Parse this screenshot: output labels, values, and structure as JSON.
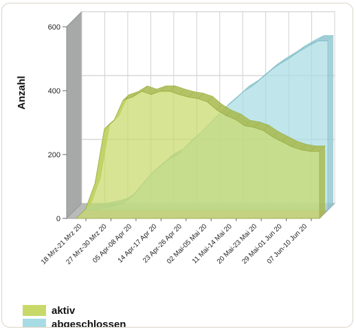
{
  "chart_data": {
    "type": "area",
    "ylabel": "Anzahl",
    "ylim": [
      0,
      600
    ],
    "y_ticks": [
      0,
      200,
      400,
      600
    ],
    "tick_labels": [
      "18 Mrz-21 Mrz 20",
      "27 Mrz-30 Mrz 20",
      "05 Apr-08 Apr 20",
      "14 Apr-17 Apr 20",
      "23 Apr-26 Apr 20",
      "02 Mai-05 Mai 20",
      "11 Mai-14 Mai 20",
      "20 Mai-23 Mai 20",
      "29 Mai-01 Jun 20",
      "07 Jun-10 Jun 20"
    ],
    "series": [
      {
        "name": "aktiv",
        "color": "#c8d96a",
        "values": [
          0,
          30,
          110,
          280,
          305,
          370,
          380,
          398,
          388,
          398,
          398,
          388,
          380,
          375,
          365,
          340,
          322,
          310,
          290,
          285,
          275,
          255,
          240,
          225,
          215,
          210,
          210
        ]
      },
      {
        "name": "abgeschlossen",
        "color": "#a8dce4",
        "values": [
          0,
          2,
          6,
          12,
          20,
          40,
          75,
          110,
          135,
          160,
          175,
          205,
          230,
          260,
          290,
          320,
          345,
          372,
          390,
          415,
          440,
          460,
          478,
          498,
          515,
          530,
          530
        ]
      }
    ]
  }
}
